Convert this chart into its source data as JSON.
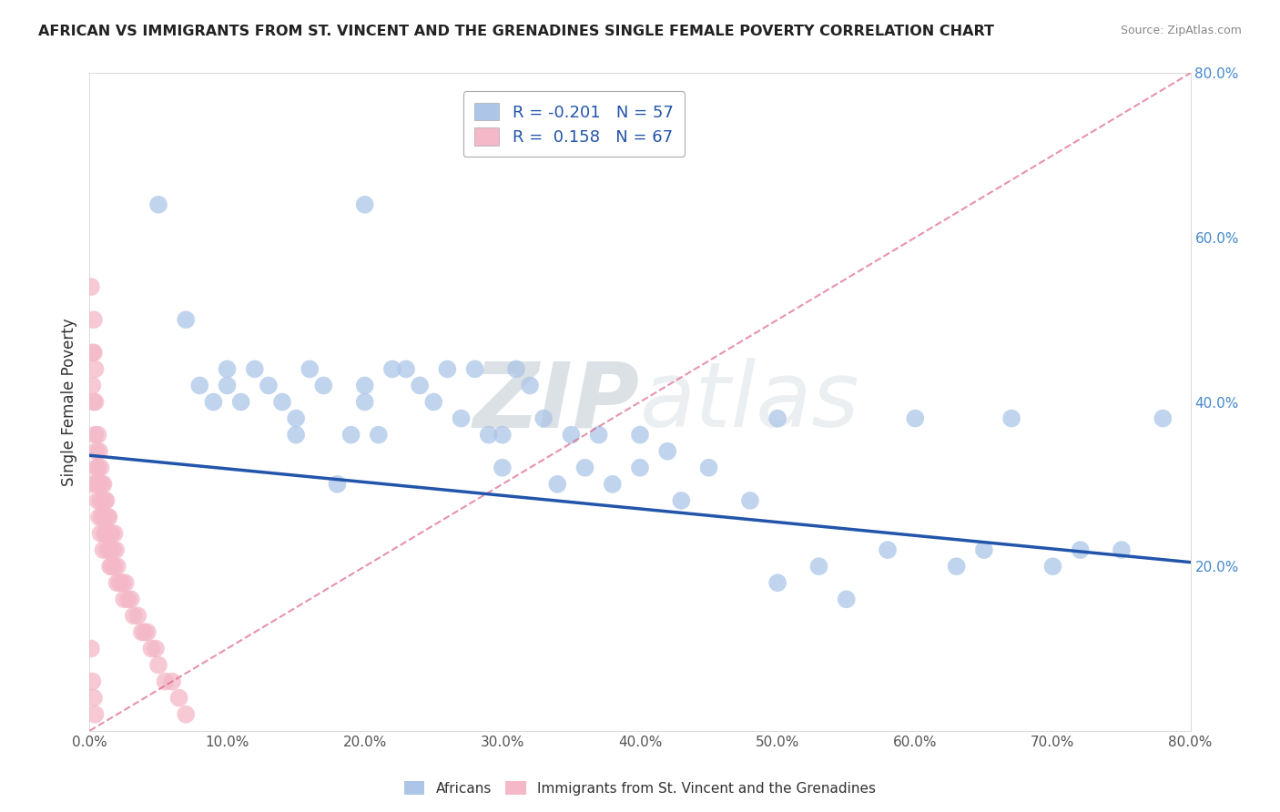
{
  "title": "AFRICAN VS IMMIGRANTS FROM ST. VINCENT AND THE GRENADINES SINGLE FEMALE POVERTY CORRELATION CHART",
  "source": "Source: ZipAtlas.com",
  "ylabel": "Single Female Poverty",
  "xlim": [
    0.0,
    0.8
  ],
  "ylim": [
    0.0,
    0.8
  ],
  "blue_R": -0.201,
  "blue_N": 57,
  "pink_R": 0.158,
  "pink_N": 67,
  "blue_color": "#adc6e8",
  "pink_color": "#f4b8c8",
  "blue_line_color": "#2255aa",
  "pink_line_color": "#dd6688",
  "legend_blue_label": "R = -0.201   N = 57",
  "legend_pink_label": "R =  0.158   N = 67",
  "africans_label": "Africans",
  "immigrants_label": "Immigrants from St. Vincent and the Grenadines",
  "watermark_zip": "ZIP",
  "watermark_atlas": "atlas",
  "background_color": "#ffffff",
  "grid_color": "#cccccc",
  "blue_scatter_x": [
    0.05,
    0.07,
    0.08,
    0.09,
    0.1,
    0.1,
    0.11,
    0.12,
    0.13,
    0.14,
    0.15,
    0.15,
    0.16,
    0.17,
    0.18,
    0.19,
    0.2,
    0.2,
    0.21,
    0.22,
    0.23,
    0.24,
    0.25,
    0.26,
    0.27,
    0.28,
    0.29,
    0.3,
    0.3,
    0.31,
    0.32,
    0.33,
    0.34,
    0.35,
    0.36,
    0.37,
    0.38,
    0.4,
    0.4,
    0.42,
    0.43,
    0.45,
    0.48,
    0.5,
    0.5,
    0.53,
    0.55,
    0.58,
    0.6,
    0.63,
    0.65,
    0.67,
    0.7,
    0.72,
    0.75,
    0.78,
    0.2
  ],
  "blue_scatter_y": [
    0.64,
    0.5,
    0.42,
    0.4,
    0.44,
    0.42,
    0.4,
    0.44,
    0.42,
    0.4,
    0.36,
    0.38,
    0.44,
    0.42,
    0.3,
    0.36,
    0.42,
    0.4,
    0.36,
    0.44,
    0.44,
    0.42,
    0.4,
    0.44,
    0.38,
    0.44,
    0.36,
    0.36,
    0.32,
    0.44,
    0.42,
    0.38,
    0.3,
    0.36,
    0.32,
    0.36,
    0.3,
    0.32,
    0.36,
    0.34,
    0.28,
    0.32,
    0.28,
    0.18,
    0.38,
    0.2,
    0.16,
    0.22,
    0.38,
    0.2,
    0.22,
    0.38,
    0.2,
    0.22,
    0.22,
    0.38,
    0.64
  ],
  "pink_scatter_x": [
    0.001,
    0.001,
    0.002,
    0.002,
    0.003,
    0.003,
    0.003,
    0.004,
    0.004,
    0.004,
    0.005,
    0.005,
    0.005,
    0.006,
    0.006,
    0.006,
    0.007,
    0.007,
    0.007,
    0.008,
    0.008,
    0.008,
    0.009,
    0.009,
    0.01,
    0.01,
    0.01,
    0.011,
    0.011,
    0.012,
    0.012,
    0.013,
    0.013,
    0.014,
    0.014,
    0.015,
    0.015,
    0.016,
    0.016,
    0.017,
    0.018,
    0.018,
    0.019,
    0.02,
    0.02,
    0.022,
    0.024,
    0.025,
    0.026,
    0.028,
    0.03,
    0.032,
    0.035,
    0.038,
    0.04,
    0.042,
    0.045,
    0.048,
    0.05,
    0.055,
    0.06,
    0.065,
    0.07,
    0.001,
    0.002,
    0.003,
    0.004
  ],
  "pink_scatter_y": [
    0.54,
    0.3,
    0.46,
    0.42,
    0.5,
    0.46,
    0.4,
    0.44,
    0.4,
    0.36,
    0.34,
    0.32,
    0.3,
    0.36,
    0.32,
    0.28,
    0.34,
    0.3,
    0.26,
    0.32,
    0.28,
    0.24,
    0.3,
    0.26,
    0.3,
    0.26,
    0.22,
    0.28,
    0.24,
    0.28,
    0.24,
    0.26,
    0.22,
    0.26,
    0.22,
    0.24,
    0.2,
    0.24,
    0.2,
    0.22,
    0.24,
    0.2,
    0.22,
    0.2,
    0.18,
    0.18,
    0.18,
    0.16,
    0.18,
    0.16,
    0.16,
    0.14,
    0.14,
    0.12,
    0.12,
    0.12,
    0.1,
    0.1,
    0.08,
    0.06,
    0.06,
    0.04,
    0.02,
    0.1,
    0.06,
    0.04,
    0.02
  ],
  "blue_line_x0": 0.0,
  "blue_line_y0": 0.335,
  "blue_line_x1": 0.8,
  "blue_line_y1": 0.205,
  "pink_line_x0": 0.0,
  "pink_line_y0": 0.0,
  "pink_line_x1": 0.8,
  "pink_line_y1": 0.8
}
